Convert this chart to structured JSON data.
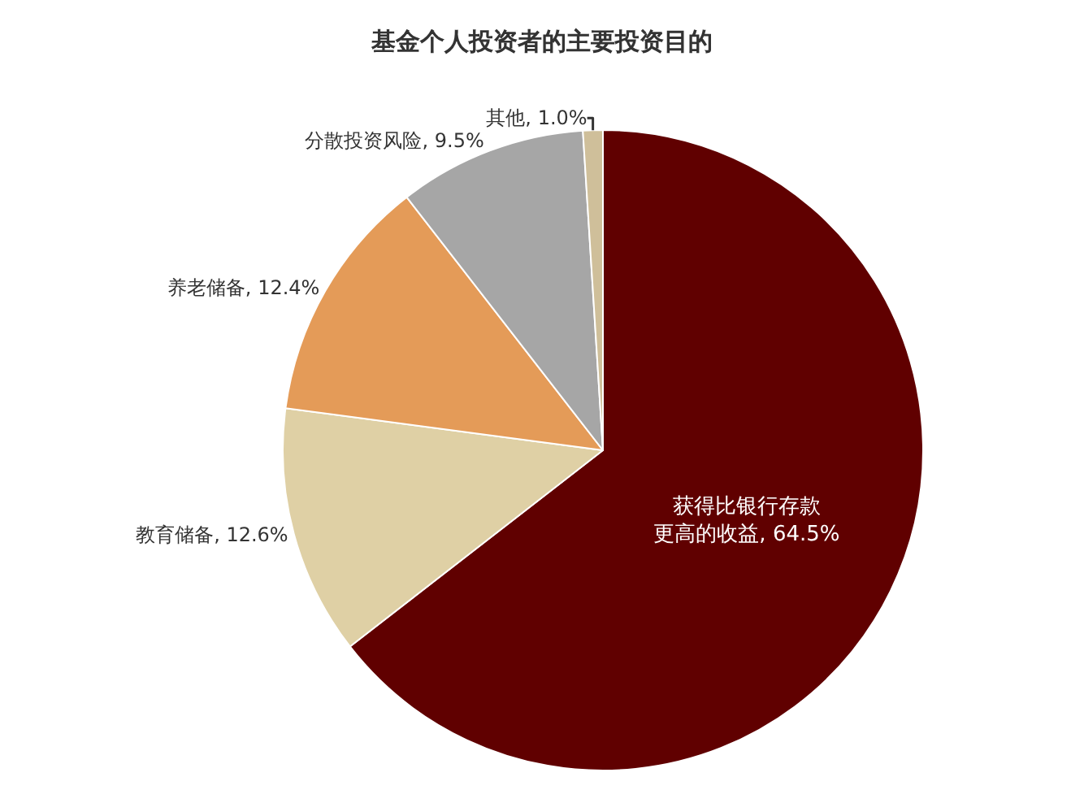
{
  "chart_data": {
    "type": "pie",
    "title": "基金个人投资者的主要投资目的",
    "categories": [
      "获得比银行存款更高的收益",
      "教育储备",
      "养老储备",
      "分散投资风险",
      "其他"
    ],
    "values": [
      64.5,
      12.6,
      12.4,
      9.5,
      1.0
    ],
    "value_labels": [
      "64.5%",
      "12.6%",
      "12.4%",
      "9.5%",
      "1.0%"
    ],
    "colors": [
      "#600000",
      "#dfd0a5",
      "#e49b58",
      "#a6a6a6",
      "#cfbf9a"
    ],
    "legend": false
  }
}
